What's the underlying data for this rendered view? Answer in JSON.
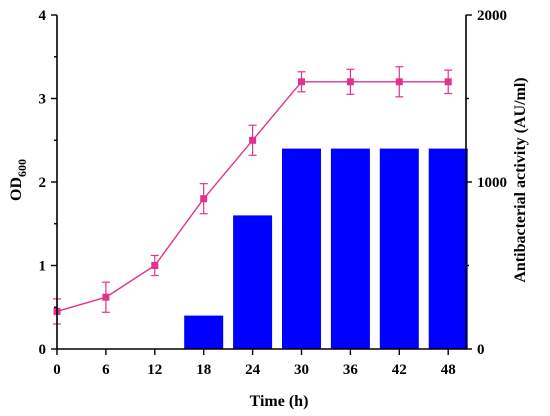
{
  "chart_data": {
    "type": "bar",
    "colors": {
      "bars": "#0000ff",
      "line": "#e0338f",
      "axis": "#000000"
    },
    "x_ticks": [
      0,
      6,
      12,
      18,
      24,
      30,
      36,
      42,
      48
    ],
    "xlabel": "Time (h)",
    "xlim": [
      0,
      50
    ],
    "ylabel_left": "OD",
    "ylabel_left_sub": "600",
    "ylim_left": [
      0,
      4
    ],
    "yticks_left": [
      0,
      1,
      2,
      3,
      4
    ],
    "ylabel_right": "Antibacterial activity (AU/ml)",
    "ylim_right": [
      0,
      2000
    ],
    "yticks_right": [
      0,
      1000,
      2000
    ],
    "series": [
      {
        "type": "bar",
        "axis": "right",
        "x": [
          18,
          24,
          30,
          36,
          42,
          48
        ],
        "values": [
          200,
          800,
          1200,
          1200,
          1200,
          1200
        ]
      },
      {
        "type": "line",
        "axis": "left",
        "marker": "square",
        "x": [
          0,
          6,
          12,
          18,
          24,
          30,
          36,
          42,
          48
        ],
        "values": [
          0.45,
          0.62,
          1.0,
          1.8,
          2.5,
          3.2,
          3.2,
          3.2,
          3.2
        ],
        "errors": [
          0.15,
          0.18,
          0.12,
          0.18,
          0.18,
          0.12,
          0.15,
          0.18,
          0.14
        ]
      }
    ]
  }
}
